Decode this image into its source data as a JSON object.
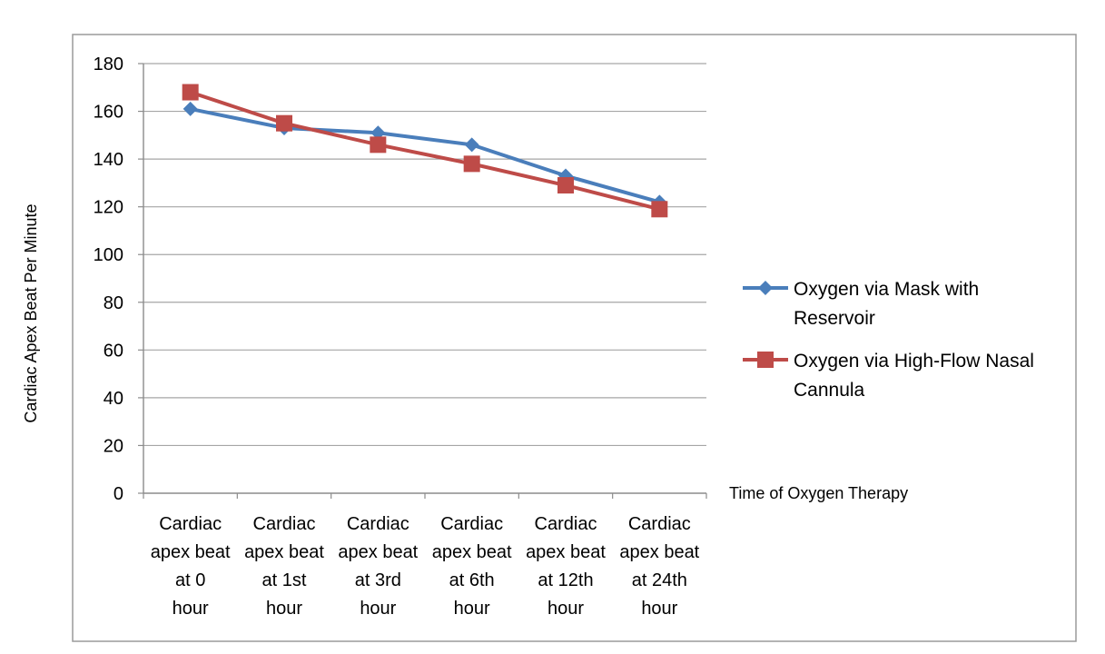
{
  "chart_data": {
    "type": "line",
    "title": "",
    "ylabel": "Cardiac Apex Beat Per Minute",
    "xlabel": "Time of Oxygen Therapy",
    "ylim": [
      0,
      180
    ],
    "y_ticks": [
      "0",
      "20",
      "40",
      "60",
      "80",
      "100",
      "120",
      "140",
      "160",
      "180"
    ],
    "grid": true,
    "legend_position": "right",
    "categories": [
      [
        "Cardiac",
        "apex beat",
        "at 0",
        "hour"
      ],
      [
        "Cardiac",
        "apex beat",
        "at 1st",
        "hour"
      ],
      [
        "Cardiac",
        "apex beat",
        "at 3rd",
        "hour"
      ],
      [
        "Cardiac",
        "apex beat",
        "at 6th",
        "hour"
      ],
      [
        "Cardiac",
        "apex beat",
        "at 12th",
        "hour"
      ],
      [
        "Cardiac",
        "apex beat",
        "at 24th",
        "hour"
      ]
    ],
    "series": [
      {
        "name": "Oxygen via Mask with Reservoir",
        "legend_lines": [
          "Oxygen via Mask with",
          "Reservoir"
        ],
        "color": "#4a7ebb",
        "marker": "diamond",
        "values": [
          161,
          153,
          151,
          146,
          133,
          122
        ]
      },
      {
        "name": "Oxygen via High-Flow Nasal Cannula",
        "legend_lines": [
          "Oxygen via High-Flow Nasal",
          "Cannula"
        ],
        "color": "#be4b48",
        "marker": "square",
        "values": [
          168,
          155,
          146,
          138,
          129,
          119
        ]
      }
    ]
  }
}
